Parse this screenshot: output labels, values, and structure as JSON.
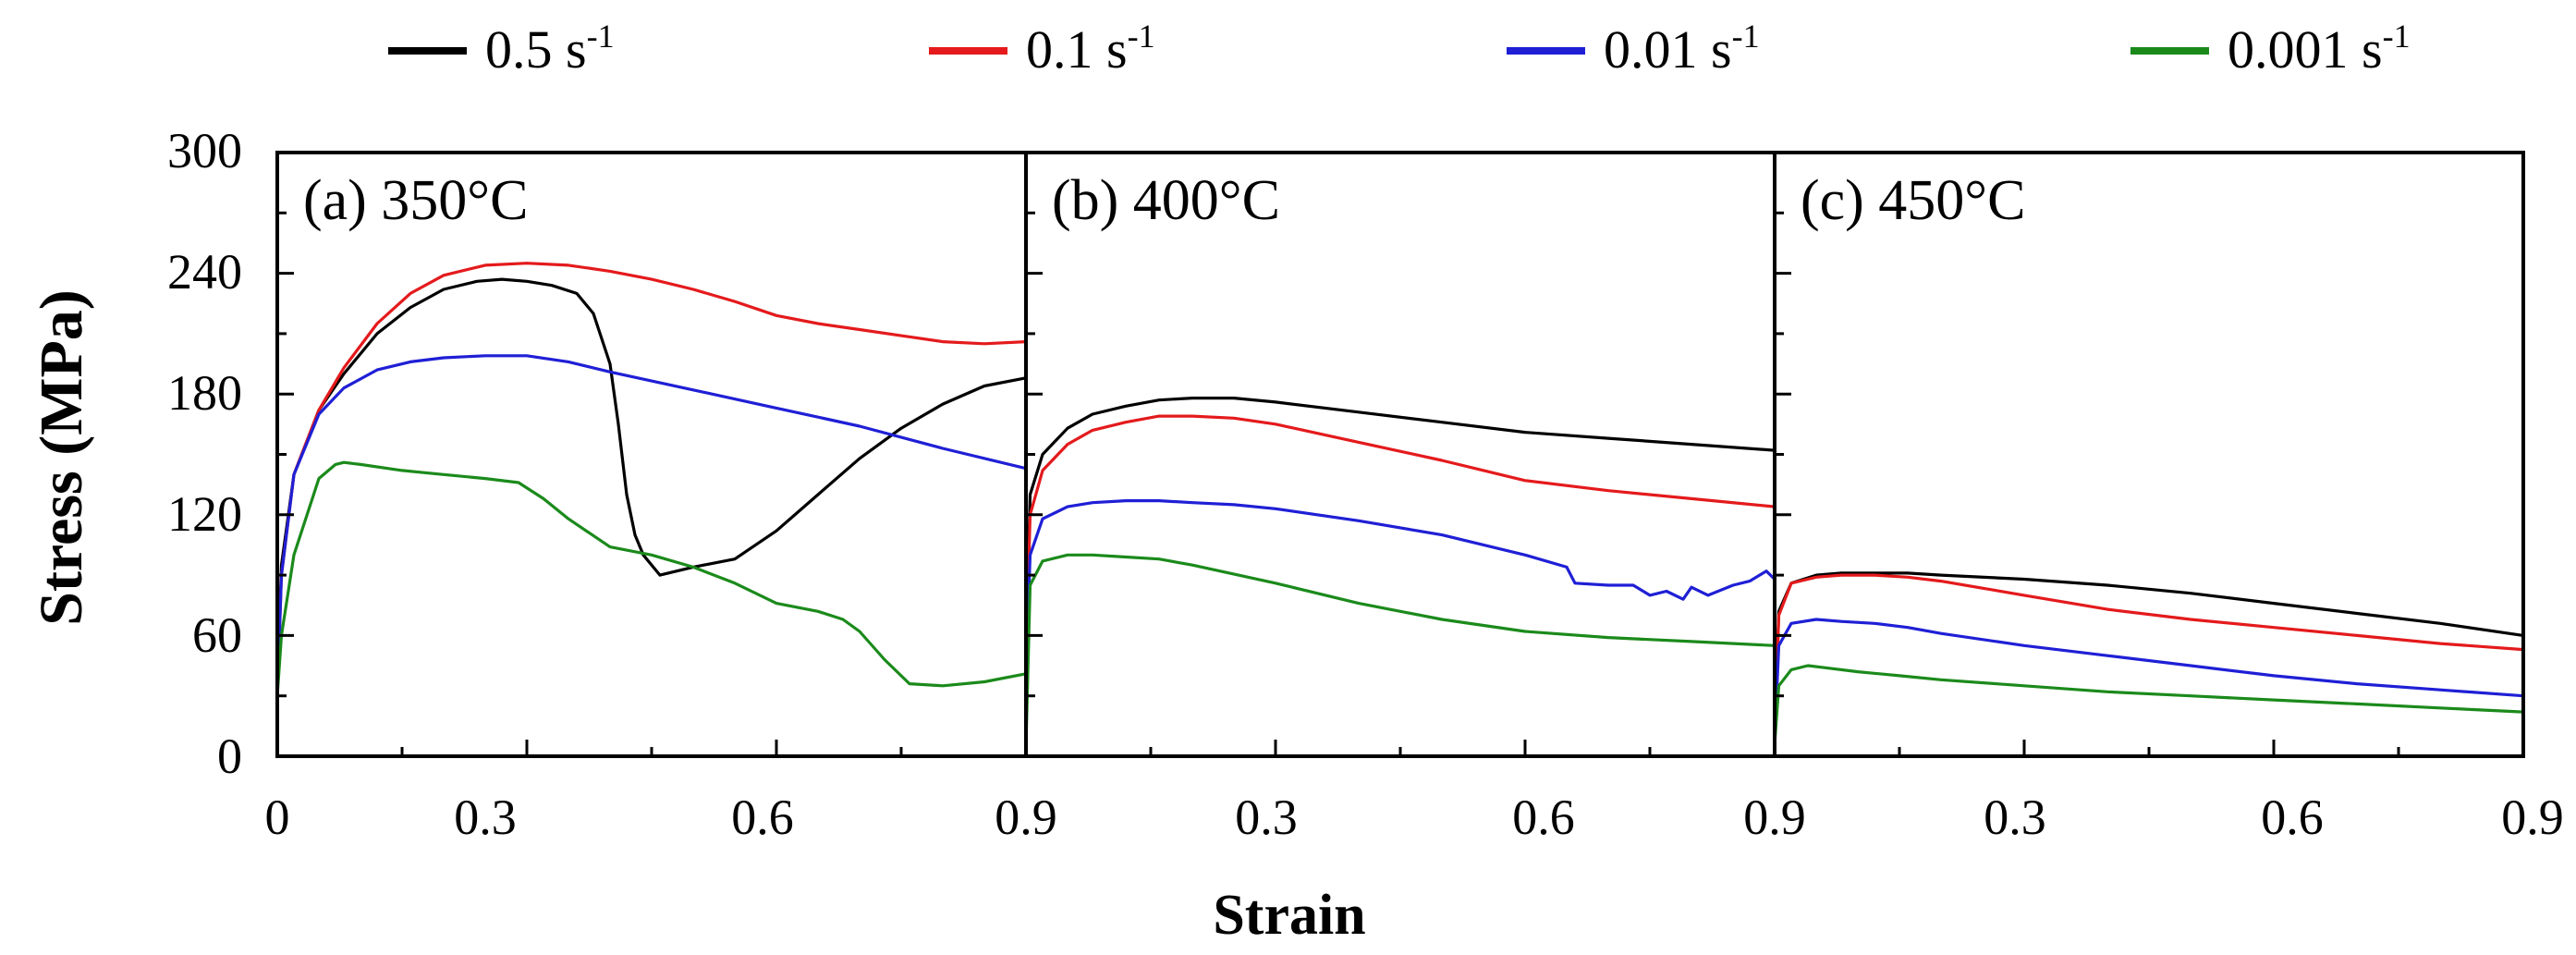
{
  "legend": [
    {
      "label": "0.5 s",
      "sup": "-1",
      "color": "#000000"
    },
    {
      "label": "0.1 s",
      "sup": "-1",
      "color": "#e41a1c"
    },
    {
      "label": "0.01 s",
      "sup": "-1",
      "color": "#1f1fd6"
    },
    {
      "label": "0.001 s",
      "sup": "-1",
      "color": "#1b8a1b"
    }
  ],
  "y_axis_label": "Stress (MPa)",
  "x_axis_label": "Strain",
  "y_ticks": [
    "0",
    "60",
    "120",
    "180",
    "240",
    "300"
  ],
  "x_ticks": [
    "0",
    "0.3",
    "0.6",
    "0.9",
    "0.3",
    "0.6",
    "0.9",
    "0.3",
    "0.6",
    "0.9"
  ],
  "chart_data": {
    "type": "line",
    "xlabel": "Strain",
    "ylabel": "Stress (MPa)",
    "ylim": [
      0,
      300
    ],
    "xlim": [
      0,
      0.9
    ],
    "panels": [
      {
        "title": "(a) 350°C",
        "series": [
          {
            "name": "0.5 s-1",
            "color": "#000000",
            "x": [
              0,
              0.005,
              0.02,
              0.05,
              0.08,
              0.12,
              0.16,
              0.2,
              0.24,
              0.27,
              0.3,
              0.33,
              0.36,
              0.38,
              0.4,
              0.41,
              0.42,
              0.43,
              0.44,
              0.46,
              0.5,
              0.55,
              0.6,
              0.65,
              0.7,
              0.75,
              0.8,
              0.85,
              0.9
            ],
            "y": [
              32,
              95,
              140,
              172,
              190,
              210,
              223,
              232,
              236,
              237,
              236,
              234,
              230,
              220,
              195,
              165,
              130,
              110,
              100,
              90,
              94,
              98,
              112,
              130,
              148,
              163,
              175,
              184,
              188
            ]
          },
          {
            "name": "0.1 s-1",
            "color": "#e41a1c",
            "x": [
              0,
              0.005,
              0.02,
              0.05,
              0.08,
              0.12,
              0.16,
              0.2,
              0.25,
              0.3,
              0.35,
              0.4,
              0.45,
              0.5,
              0.55,
              0.6,
              0.65,
              0.7,
              0.75,
              0.8,
              0.85,
              0.9
            ],
            "y": [
              30,
              90,
              140,
              172,
              193,
              215,
              230,
              239,
              244,
              245,
              244,
              241,
              237,
              232,
              226,
              219,
              215,
              212,
              209,
              206,
              205,
              206
            ]
          },
          {
            "name": "0.01 s-1",
            "color": "#1f1fd6",
            "x": [
              0,
              0.005,
              0.02,
              0.05,
              0.08,
              0.12,
              0.16,
              0.2,
              0.25,
              0.3,
              0.35,
              0.4,
              0.5,
              0.6,
              0.7,
              0.8,
              0.9
            ],
            "y": [
              30,
              90,
              140,
              170,
              183,
              192,
              196,
              198,
              199,
              199,
              196,
              191,
              182,
              173,
              164,
              153,
              143
            ]
          },
          {
            "name": "0.001 s-1",
            "color": "#1b8a1b",
            "x": [
              0,
              0.005,
              0.02,
              0.05,
              0.07,
              0.08,
              0.1,
              0.15,
              0.2,
              0.25,
              0.29,
              0.32,
              0.35,
              0.4,
              0.45,
              0.5,
              0.55,
              0.6,
              0.65,
              0.68,
              0.7,
              0.73,
              0.76,
              0.8,
              0.85,
              0.9
            ],
            "y": [
              30,
              60,
              100,
              138,
              145,
              146,
              145,
              142,
              140,
              138,
              136,
              128,
              118,
              104,
              100,
              94,
              86,
              76,
              72,
              68,
              62,
              48,
              36,
              35,
              37,
              41
            ]
          }
        ]
      },
      {
        "title": "(b) 400°C",
        "series": [
          {
            "name": "0.5 s-1",
            "color": "#000000",
            "x": [
              0,
              0.005,
              0.02,
              0.05,
              0.08,
              0.12,
              0.16,
              0.2,
              0.25,
              0.3,
              0.4,
              0.5,
              0.6,
              0.7,
              0.8,
              0.9
            ],
            "y": [
              50,
              130,
              150,
              163,
              170,
              174,
              177,
              178,
              178,
              176,
              171,
              166,
              161,
              158,
              155,
              152
            ]
          },
          {
            "name": "0.1 s-1",
            "color": "#e41a1c",
            "x": [
              0,
              0.005,
              0.02,
              0.05,
              0.08,
              0.12,
              0.16,
              0.2,
              0.25,
              0.3,
              0.4,
              0.5,
              0.6,
              0.7,
              0.8,
              0.9
            ],
            "y": [
              45,
              120,
              142,
              155,
              162,
              166,
              169,
              169,
              168,
              165,
              156,
              147,
              137,
              132,
              128,
              124
            ]
          },
          {
            "name": "0.01 s-1",
            "color": "#1f1fd6",
            "x": [
              0,
              0.005,
              0.02,
              0.05,
              0.08,
              0.12,
              0.16,
              0.2,
              0.25,
              0.3,
              0.4,
              0.5,
              0.6,
              0.65,
              0.66,
              0.7,
              0.73,
              0.75,
              0.77,
              0.79,
              0.8,
              0.82,
              0.85,
              0.87,
              0.89,
              0.9
            ],
            "y": [
              40,
              100,
              118,
              124,
              126,
              127,
              127,
              126,
              125,
              123,
              117,
              110,
              100,
              94,
              86,
              85,
              85,
              80,
              82,
              78,
              84,
              80,
              85,
              87,
              92,
              88
            ]
          },
          {
            "name": "0.001 s-1",
            "color": "#1b8a1b",
            "x": [
              0,
              0.005,
              0.02,
              0.05,
              0.08,
              0.12,
              0.16,
              0.2,
              0.3,
              0.4,
              0.5,
              0.6,
              0.7,
              0.8,
              0.9
            ],
            "y": [
              5,
              85,
              97,
              100,
              100,
              99,
              98,
              95,
              86,
              76,
              68,
              62,
              59,
              57,
              55
            ]
          }
        ]
      },
      {
        "title": "(c) 450°C",
        "series": [
          {
            "name": "0.5 s-1",
            "color": "#000000",
            "x": [
              0,
              0.005,
              0.02,
              0.05,
              0.08,
              0.12,
              0.16,
              0.2,
              0.3,
              0.4,
              0.5,
              0.6,
              0.7,
              0.8,
              0.9
            ],
            "y": [
              10,
              72,
              86,
              90,
              91,
              91,
              91,
              90,
              88,
              85,
              81,
              76,
              71,
              66,
              60
            ]
          },
          {
            "name": "0.1 s-1",
            "color": "#e41a1c",
            "x": [
              0,
              0.005,
              0.02,
              0.05,
              0.08,
              0.12,
              0.16,
              0.2,
              0.3,
              0.4,
              0.5,
              0.6,
              0.7,
              0.8,
              0.9
            ],
            "y": [
              10,
              70,
              86,
              89,
              90,
              90,
              89,
              87,
              80,
              73,
              68,
              64,
              60,
              56,
              53
            ]
          },
          {
            "name": "0.01 s-1",
            "color": "#1f1fd6",
            "x": [
              0,
              0.005,
              0.02,
              0.05,
              0.08,
              0.12,
              0.16,
              0.2,
              0.3,
              0.4,
              0.5,
              0.6,
              0.7,
              0.8,
              0.9
            ],
            "y": [
              8,
              55,
              66,
              68,
              67,
              66,
              64,
              61,
              55,
              50,
              45,
              40,
              36,
              33,
              30
            ]
          },
          {
            "name": "0.001 s-1",
            "color": "#1b8a1b",
            "x": [
              0,
              0.005,
              0.02,
              0.04,
              0.06,
              0.1,
              0.15,
              0.2,
              0.3,
              0.4,
              0.5,
              0.6,
              0.7,
              0.8,
              0.9
            ],
            "y": [
              6,
              35,
              43,
              45,
              44,
              42,
              40,
              38,
              35,
              32,
              30,
              28,
              26,
              24,
              22
            ]
          }
        ]
      }
    ]
  }
}
